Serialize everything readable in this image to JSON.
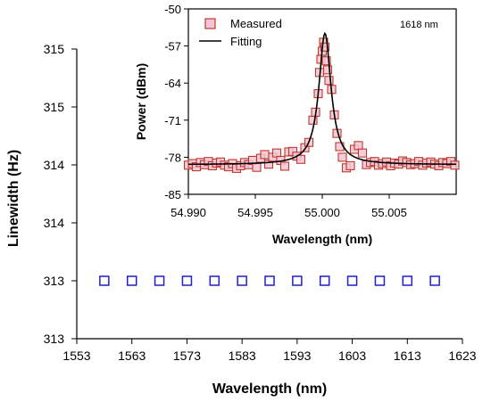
{
  "chart_data": [
    {
      "type": "scatter",
      "xlabel": "Wavelength (nm)",
      "ylabel": "Linewidth (Hz)",
      "xlim": [
        1553,
        1623
      ],
      "ylim": [
        313,
        315.5
      ],
      "x_ticks": [
        1553,
        1563,
        1573,
        1583,
        1593,
        1603,
        1613,
        1623
      ],
      "y_tick_values": [
        313,
        313.5,
        314,
        314.5,
        315,
        315.5
      ],
      "y_tick_labels": [
        "313",
        "313",
        "314",
        "314",
        "315",
        "315"
      ],
      "series": [
        {
          "marker_color": "#1f1fd0",
          "x": [
            1558,
            1563,
            1568,
            1573,
            1578,
            1583,
            1588,
            1593,
            1598,
            1603,
            1608,
            1613,
            1618
          ],
          "y": [
            313.5,
            313.5,
            313.5,
            313.5,
            313.5,
            313.5,
            313.5,
            313.5,
            313.5,
            313.5,
            313.5,
            313.5,
            313.5
          ]
        }
      ],
      "grid": false
    },
    {
      "type": "scatter",
      "xlabel": "Wavelength (nm)",
      "ylabel": "Power (dBm)",
      "xlim": [
        54.99,
        55.01
      ],
      "ylim": [
        -85,
        -50
      ],
      "x_tick_values": [
        54.99,
        54.995,
        55.0,
        55.005
      ],
      "x_tick_labels": [
        "54.990",
        "54.995",
        "55.000",
        "55.005"
      ],
      "y_ticks": [
        -50,
        -57,
        -64,
        -71,
        -78,
        -85
      ],
      "annotation": "1618 nm",
      "legend_position": "top-left",
      "series": [
        {
          "name": "Measured",
          "marker_color": "#c0392b",
          "marker_fill": "#f2c6d6",
          "x": [
            54.99,
            54.9903,
            54.9906,
            54.9909,
            54.9912,
            54.9915,
            54.9918,
            54.9921,
            54.9924,
            54.9927,
            54.993,
            54.9933,
            54.9936,
            54.9939,
            54.9942,
            54.9945,
            54.9948,
            54.9951,
            54.9954,
            54.9957,
            54.996,
            54.9963,
            54.9966,
            54.9969,
            54.9972,
            54.9975,
            54.9978,
            54.9981,
            54.9984,
            54.9987,
            54.999,
            54.9993,
            54.9995,
            54.9997,
            54.9998,
            54.9999,
            55.0,
            55.0001,
            55.0002,
            55.0003,
            55.0004,
            55.0005,
            55.0007,
            55.0009,
            55.0011,
            55.0013,
            55.0015,
            55.0018,
            55.0021,
            55.0024,
            55.0027,
            55.003,
            55.0033,
            55.0036,
            55.0039,
            55.0042,
            55.0045,
            55.0048,
            55.0051,
            55.0054,
            55.0057,
            55.006,
            55.0063,
            55.0066,
            55.0069,
            55.0072,
            55.0075,
            55.0078,
            55.0081,
            55.0084,
            55.0087,
            55.009,
            55.0093,
            55.0096,
            55.0099
          ],
          "y": [
            -79.5,
            -79.2,
            -79.8,
            -79.0,
            -79.4,
            -78.8,
            -79.6,
            -79.1,
            -78.9,
            -79.5,
            -79.8,
            -79.2,
            -80.1,
            -79.6,
            -79.0,
            -79.4,
            -78.6,
            -79.9,
            -78.2,
            -77.5,
            -79.3,
            -78.0,
            -77.2,
            -78.6,
            -79.7,
            -77.0,
            -76.9,
            -77.8,
            -78.4,
            -76.2,
            -75.2,
            -71.0,
            -69.5,
            -66.0,
            -62.0,
            -59.5,
            -58.0,
            -56.3,
            -57.2,
            -59.8,
            -61.5,
            -63.5,
            -65.2,
            -70.0,
            -73.5,
            -76.0,
            -78.0,
            -80.0,
            -79.6,
            -76.5,
            -75.8,
            -77.2,
            -79.4,
            -79.0,
            -78.8,
            -79.5,
            -79.2,
            -78.9,
            -79.6,
            -79.1,
            -79.3,
            -78.7,
            -79.0,
            -79.4,
            -79.2,
            -78.8,
            -79.5,
            -79.1,
            -78.9,
            -79.3,
            -79.6,
            -79.0,
            -79.2,
            -78.8,
            -79.5
          ]
        },
        {
          "name": "Fitting",
          "line_color": "#000000",
          "center": 55.0002,
          "half_width": 0.00055,
          "floor": -79.4,
          "peak": -54.6
        }
      ]
    }
  ]
}
